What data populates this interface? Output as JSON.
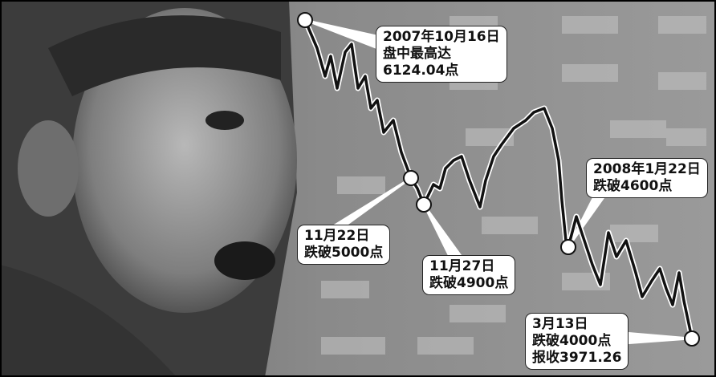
{
  "callouts": [
    {
      "lines": [
        "2007年10月16日",
        "盘中最高达",
        "6124.04点"
      ]
    },
    {
      "lines": [
        "11月22日",
        "跌破5000点"
      ]
    },
    {
      "lines": [
        "11月27日",
        "跌破4900点"
      ]
    },
    {
      "lines": [
        "2008年1月22日",
        "跌破4600点"
      ]
    },
    {
      "lines": [
        "3月13日",
        "跌破4000点",
        "报收3971.26"
      ]
    }
  ]
}
